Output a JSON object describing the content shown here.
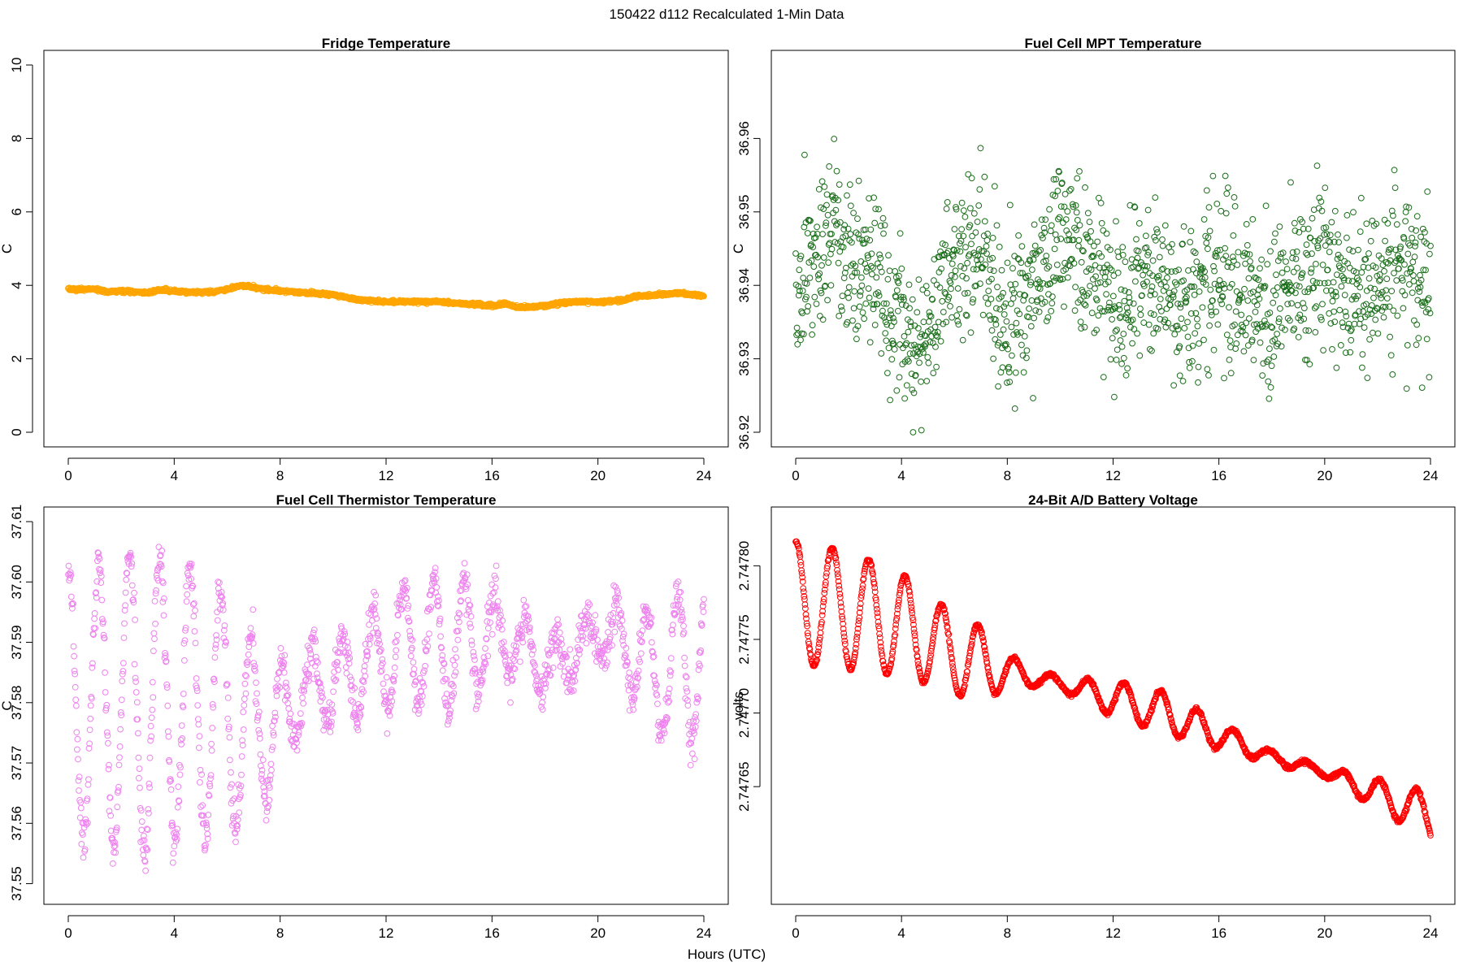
{
  "figure": {
    "suptitle": "150422   d112   Recalculated 1-Min Data",
    "xlabel": "Hours (UTC)"
  },
  "chart_data": [
    {
      "type": "scatter",
      "title": "Fridge Temperature",
      "ylabel": "C",
      "color": "#FFA500",
      "xlim": [
        0,
        24
      ],
      "ylim": [
        0,
        10
      ],
      "xticks": [
        "0",
        "4",
        "8",
        "12",
        "16",
        "20",
        "24"
      ],
      "yticks": [
        "0",
        "2",
        "4",
        "6",
        "8",
        "10"
      ],
      "ytick_values": [
        0,
        2,
        4,
        6,
        8,
        10
      ],
      "series": [
        {
          "name": "Fridge Temperature",
          "model": "anchors",
          "anchors": [
            [
              0,
              3.9
            ],
            [
              0.5,
              3.88
            ],
            [
              1,
              3.9
            ],
            [
              1.5,
              3.82
            ],
            [
              2,
              3.85
            ],
            [
              3,
              3.8
            ],
            [
              3.5,
              3.88
            ],
            [
              4,
              3.85
            ],
            [
              4.5,
              3.8
            ],
            [
              5.5,
              3.82
            ],
            [
              6,
              3.9
            ],
            [
              6.5,
              4.0
            ],
            [
              7,
              3.95
            ],
            [
              7.5,
              3.88
            ],
            [
              8,
              3.85
            ],
            [
              9,
              3.8
            ],
            [
              10,
              3.75
            ],
            [
              11,
              3.6
            ],
            [
              12,
              3.55
            ],
            [
              13,
              3.55
            ],
            [
              14,
              3.55
            ],
            [
              15,
              3.5
            ],
            [
              16,
              3.45
            ],
            [
              16.5,
              3.5
            ],
            [
              17,
              3.4
            ],
            [
              18,
              3.45
            ],
            [
              19,
              3.55
            ],
            [
              20,
              3.55
            ],
            [
              21,
              3.6
            ],
            [
              21.5,
              3.72
            ],
            [
              22,
              3.72
            ],
            [
              23,
              3.8
            ],
            [
              24,
              3.7
            ]
          ],
          "noise": 0.02,
          "n": 1440
        }
      ]
    },
    {
      "type": "scatter",
      "title": "Fuel Cell MPT Temperature",
      "ylabel": "C",
      "color": "#1B6E1B",
      "xlim": [
        0,
        24
      ],
      "ylim": [
        36.92,
        36.97
      ],
      "xticks": [
        "0",
        "4",
        "8",
        "12",
        "16",
        "20",
        "24"
      ],
      "yticks": [
        "36.92",
        "36.93",
        "36.94",
        "36.95",
        "36.96"
      ],
      "ytick_values": [
        36.92,
        36.93,
        36.94,
        36.95,
        36.96
      ],
      "series": [
        {
          "name": "Fuel Cell MPT Temperature",
          "model": "anchors",
          "anchors": [
            [
              0,
              36.94
            ],
            [
              1,
              36.944
            ],
            [
              1.5,
              36.95
            ],
            [
              2,
              36.942
            ],
            [
              3,
              36.942
            ],
            [
              3.5,
              36.938
            ],
            [
              4,
              36.936
            ],
            [
              4.5,
              36.93
            ],
            [
              5,
              36.933
            ],
            [
              6,
              36.942
            ],
            [
              7,
              36.946
            ],
            [
              7.5,
              36.938
            ],
            [
              8,
              36.934
            ],
            [
              9,
              36.941
            ],
            [
              10,
              36.946
            ],
            [
              11,
              36.944
            ],
            [
              12,
              36.939
            ],
            [
              12.5,
              36.934
            ],
            [
              13,
              36.942
            ],
            [
              14,
              36.939
            ],
            [
              15,
              36.936
            ],
            [
              16,
              36.942
            ],
            [
              17,
              36.939
            ],
            [
              18,
              36.937
            ],
            [
              19,
              36.941
            ],
            [
              20,
              36.943
            ],
            [
              21,
              36.938
            ],
            [
              22,
              36.941
            ],
            [
              23,
              36.943
            ],
            [
              24,
              36.938
            ]
          ],
          "noise": 0.0055,
          "n": 1440
        }
      ]
    },
    {
      "type": "scatter",
      "title": "Fuel Cell Thermistor Temperature",
      "ylabel": "C",
      "color": "#EE82EE",
      "xlim": [
        0,
        24
      ],
      "ylim": [
        37.549,
        37.61
      ],
      "xticks": [
        "0",
        "4",
        "8",
        "12",
        "16",
        "20",
        "24"
      ],
      "yticks": [
        "37.55",
        "37.56",
        "37.57",
        "37.58",
        "37.59",
        "37.60",
        "37.61"
      ],
      "ytick_values": [
        37.55,
        37.56,
        37.57,
        37.58,
        37.59,
        37.6,
        37.61
      ],
      "series": [
        {
          "name": "Fuel Cell Thermistor Temperature",
          "model": "sine",
          "anchors": [
            [
              0,
              37.58
            ],
            [
              2,
              37.58
            ],
            [
              4,
              37.58
            ],
            [
              6,
              37.578
            ],
            [
              7,
              37.576
            ],
            [
              8,
              37.576
            ],
            [
              9,
              37.583
            ],
            [
              10,
              37.583
            ],
            [
              12,
              37.588
            ],
            [
              13,
              37.59
            ],
            [
              15,
              37.59
            ],
            [
              16,
              37.592
            ],
            [
              17,
              37.59
            ],
            [
              18,
              37.586
            ],
            [
              19,
              37.588
            ],
            [
              20,
              37.592
            ],
            [
              21,
              37.59
            ],
            [
              22,
              37.585
            ],
            [
              23,
              37.585
            ],
            [
              24,
              37.59
            ]
          ],
          "amp_anchors": [
            [
              0,
              0.022
            ],
            [
              3,
              0.025
            ],
            [
              6,
              0.02
            ],
            [
              7.5,
              0.012
            ],
            [
              9,
              0.006
            ],
            [
              12,
              0.009
            ],
            [
              15,
              0.011
            ],
            [
              16,
              0.006
            ],
            [
              18,
              0.005
            ],
            [
              20,
              0.004
            ],
            [
              21.5,
              0.008
            ],
            [
              23.5,
              0.014
            ],
            [
              24,
              0.012
            ]
          ],
          "period": 1.15,
          "noise": 0.0018,
          "n": 1440
        }
      ]
    },
    {
      "type": "scatter",
      "title": "24-Bit A/D Battery Voltage",
      "ylabel": "volts",
      "color": "#FF0000",
      "xlim": [
        0,
        24
      ],
      "ylim": [
        2.74758,
        2.74783
      ],
      "xticks": [
        "0",
        "4",
        "8",
        "12",
        "16",
        "20",
        "24"
      ],
      "yticks": [
        "2.74765",
        "2.74770",
        "2.74775",
        "2.74780"
      ],
      "ytick_values": [
        2.74765,
        2.7477,
        2.74775,
        2.7478
      ],
      "series": [
        {
          "name": "24-Bit A/D Battery Voltage",
          "model": "sine",
          "anchors": [
            [
              0,
              2.747775
            ],
            [
              2,
              2.74777
            ],
            [
              4,
              2.74776
            ],
            [
              6,
              2.74774
            ],
            [
              8,
              2.747728
            ],
            [
              10,
              2.74772
            ],
            [
              12,
              2.74771
            ],
            [
              14,
              2.7477
            ],
            [
              16,
              2.747685
            ],
            [
              18,
              2.74767
            ],
            [
              20,
              2.74766
            ],
            [
              22,
              2.747645
            ],
            [
              24,
              2.74763
            ]
          ],
          "amp_anchors": [
            [
              0,
              4.2e-05
            ],
            [
              2,
              4e-05
            ],
            [
              4,
              3.5e-05
            ],
            [
              5,
              3e-05
            ],
            [
              7,
              2.5e-05
            ],
            [
              8,
              1.2e-05
            ],
            [
              9,
              6e-06
            ],
            [
              10,
              4e-06
            ],
            [
              12,
              1.2e-05
            ],
            [
              14,
              1.4e-05
            ],
            [
              16,
              9e-06
            ],
            [
              18,
              4e-06
            ],
            [
              20,
              3e-06
            ],
            [
              22,
              1e-05
            ],
            [
              24,
              1.6e-05
            ]
          ],
          "period": 1.38,
          "noise": 6e-07,
          "n": 1440
        }
      ]
    }
  ]
}
